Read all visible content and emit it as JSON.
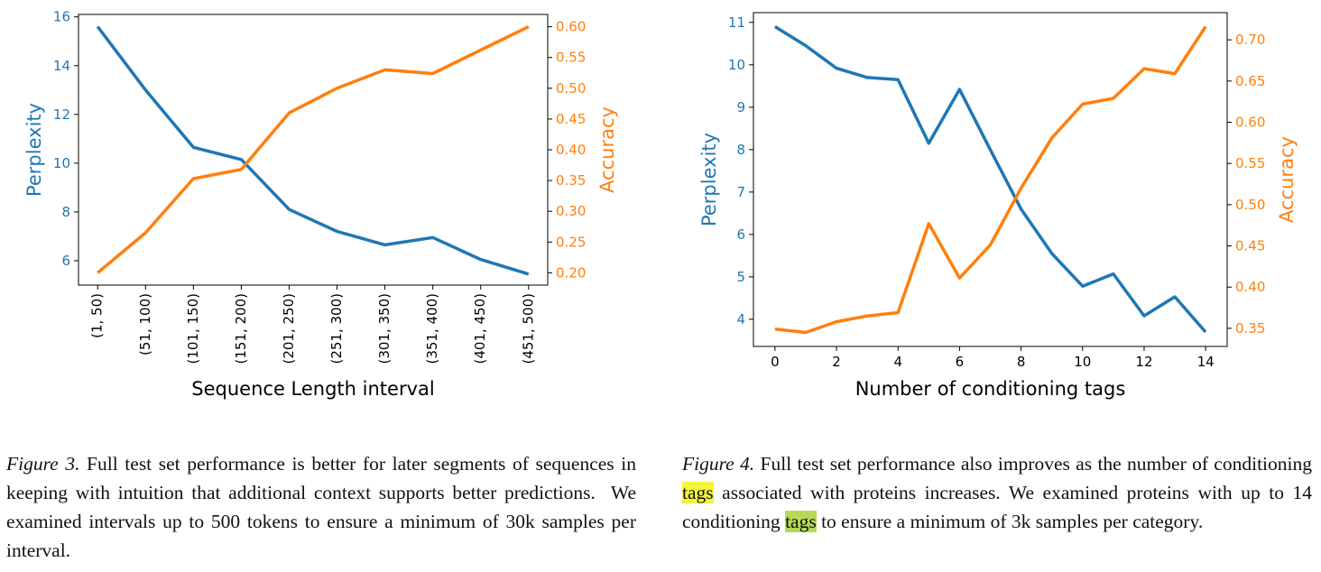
{
  "chart_data": [
    {
      "type": "line",
      "xlabel": "Sequence Length interval",
      "ylabel": "Perplexity",
      "y2label": "Accuracy",
      "categories": [
        "(1, 50)",
        "(51, 100)",
        "(101, 150)",
        "(151, 200)",
        "(201, 250)",
        "(251, 300)",
        "(301, 350)",
        "(351, 400)",
        "(401, 450)",
        "(451, 500)"
      ],
      "series": [
        {
          "color": "#1f77b4",
          "values": [
            15.6,
            13.0,
            10.65,
            10.15,
            8.1,
            7.2,
            6.65,
            6.95,
            6.05,
            5.45
          ]
        },
        {
          "color": "#ff7f0e",
          "axis": "y2",
          "values": [
            0.2,
            0.265,
            0.353,
            0.368,
            0.46,
            0.5,
            0.53,
            0.524,
            0.562,
            0.6
          ]
        }
      ],
      "ylim": [
        5.0,
        16.1
      ],
      "yticks": [
        6,
        8,
        10,
        12,
        14,
        16
      ],
      "y2lim": [
        0.18,
        0.62
      ],
      "y2ticks": [
        {
          "value": 0.2,
          "label": "0.20"
        },
        {
          "value": 0.25,
          "label": "0.25"
        },
        {
          "value": 0.3,
          "label": "0.30"
        },
        {
          "value": 0.35,
          "label": "0.35"
        },
        {
          "value": 0.4,
          "label": "0.40"
        },
        {
          "value": 0.45,
          "label": "0.45"
        },
        {
          "value": 0.5,
          "label": "0.50"
        },
        {
          "value": 0.55,
          "label": "0.55"
        },
        {
          "value": 0.6,
          "label": "0.60"
        }
      ]
    },
    {
      "type": "line",
      "xlabel": "Number of conditioning tags",
      "ylabel": "Perplexity",
      "y2label": "Accuracy",
      "x": [
        0,
        1,
        2,
        3,
        4,
        5,
        6,
        7,
        8,
        9,
        10,
        11,
        12,
        13,
        14
      ],
      "xlim": [
        -0.7,
        14.7
      ],
      "xticks": [
        0,
        2,
        4,
        6,
        8,
        10,
        12,
        14
      ],
      "series": [
        {
          "color": "#1f77b4",
          "values": [
            10.9,
            10.45,
            9.92,
            9.7,
            9.65,
            8.15,
            9.42,
            8.0,
            6.6,
            5.55,
            4.78,
            5.07,
            4.08,
            4.53,
            3.7
          ]
        },
        {
          "color": "#ff7f0e",
          "axis": "y2",
          "values": [
            0.349,
            0.345,
            0.358,
            0.365,
            0.369,
            0.477,
            0.411,
            0.451,
            0.52,
            0.581,
            0.622,
            0.629,
            0.665,
            0.659,
            0.716
          ]
        }
      ],
      "ylim": [
        3.36,
        11.23
      ],
      "yticks": [
        4,
        5,
        6,
        7,
        8,
        9,
        10,
        11
      ],
      "y2lim": [
        0.328,
        0.733
      ],
      "y2ticks": [
        {
          "value": 0.35,
          "label": "0.35"
        },
        {
          "value": 0.4,
          "label": "0.40"
        },
        {
          "value": 0.45,
          "label": "0.45"
        },
        {
          "value": 0.5,
          "label": "0.50"
        },
        {
          "value": 0.55,
          "label": "0.55"
        },
        {
          "value": 0.6,
          "label": "0.60"
        },
        {
          "value": 0.65,
          "label": "0.65"
        },
        {
          "value": 0.7,
          "label": "0.70"
        }
      ]
    }
  ],
  "captions": [
    {
      "label": "Figure 3.",
      "segments": [
        {
          "text": " Full test set performance is better for later segments of sequences in keeping with intuition that additional context supports better predictions.  We examined intervals up to 500 tokens to ensure a minimum of 30k samples per interval."
        }
      ]
    },
    {
      "label": "Figure 4.",
      "segments": [
        {
          "text": " Full test set performance also improves as the number of conditioning "
        },
        {
          "text": "tags",
          "highlight": "#f4f53b"
        },
        {
          "text": " associated with proteins increases. We examined proteins with up to 14 conditioning "
        },
        {
          "text": "tags",
          "highlight": "#b5d957"
        },
        {
          "text": " to ensure a minimum of 3k samples per category."
        }
      ]
    }
  ]
}
